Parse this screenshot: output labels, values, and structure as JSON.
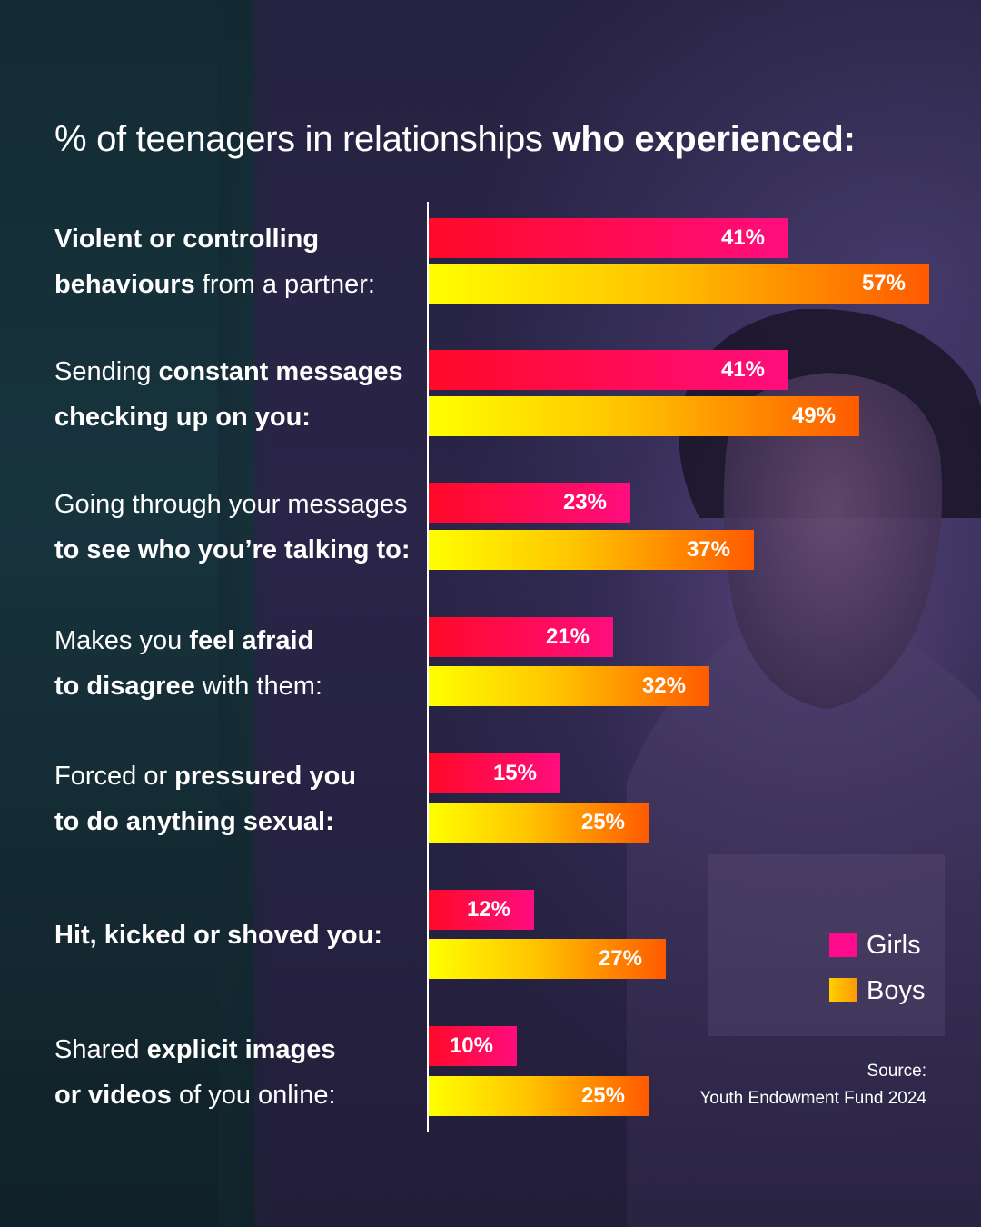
{
  "title": {
    "regular": "% of teenagers in relationships ",
    "bold": "who experienced:"
  },
  "legend": {
    "girls": "Girls",
    "boys": "Boys"
  },
  "source": {
    "label": "Source:",
    "text": "Youth Endowment Fund 2024"
  },
  "colors": {
    "girls": "#ff0a8c",
    "boys": "#ffb000"
  },
  "chart_data": {
    "type": "bar",
    "orientation": "horizontal",
    "title": "% of teenagers in relationships who experienced:",
    "unit": "%",
    "xlim": [
      0,
      57
    ],
    "categories": [
      "Violent or controlling behaviours from a partner:",
      "Sending constant messages checking up on you:",
      "Going through your messages to see who you’re talking to:",
      "Makes you feel afraid to disagree with them:",
      "Forced or pressured you to do anything sexual:",
      "Hit, kicked or shoved you:",
      "Shared explicit images or videos of you online:"
    ],
    "category_labels": [
      {
        "lines": [
          [
            {
              "t": "Violent or controlling",
              "b": true
            }
          ],
          [
            {
              "t": "behaviours",
              "b": true
            },
            {
              "t": " from a partner:",
              "b": false
            }
          ]
        ]
      },
      {
        "lines": [
          [
            {
              "t": "Sending ",
              "b": false
            },
            {
              "t": "constant messages",
              "b": true
            }
          ],
          [
            {
              "t": "checking up on you:",
              "b": true
            }
          ]
        ]
      },
      {
        "lines": [
          [
            {
              "t": "Going through your messages",
              "b": false
            }
          ],
          [
            {
              "t": "to see who you’re talking to:",
              "b": true
            }
          ]
        ]
      },
      {
        "lines": [
          [
            {
              "t": "Makes you ",
              "b": false
            },
            {
              "t": "feel afraid",
              "b": true
            }
          ],
          [
            {
              "t": "to disagree",
              "b": true
            },
            {
              "t": " with them:",
              "b": false
            }
          ]
        ]
      },
      {
        "lines": [
          [
            {
              "t": "Forced or ",
              "b": false
            },
            {
              "t": "pressured you",
              "b": true
            }
          ],
          [
            {
              "t": "to do anything sexual:",
              "b": true
            }
          ]
        ]
      },
      {
        "lines": [
          [
            {
              "t": "Hit, kicked or shoved you:",
              "b": true
            }
          ]
        ]
      },
      {
        "lines": [
          [
            {
              "t": "Shared ",
              "b": false
            },
            {
              "t": "explicit images",
              "b": true
            }
          ],
          [
            {
              "t": "or videos",
              "b": true
            },
            {
              "t": " of you online:",
              "b": false
            }
          ]
        ]
      }
    ],
    "series": [
      {
        "name": "Girls",
        "values": [
          41,
          41,
          23,
          21,
          15,
          12,
          10
        ]
      },
      {
        "name": "Boys",
        "values": [
          57,
          49,
          37,
          32,
          25,
          27,
          25
        ]
      }
    ],
    "value_labels": {
      "Girls": [
        "41%",
        "41%",
        "23%",
        "21%",
        "15%",
        "12%",
        "10%"
      ],
      "Boys": [
        "57%",
        "49%",
        "37%",
        "32%",
        "25%",
        "27%",
        "25%"
      ]
    }
  }
}
